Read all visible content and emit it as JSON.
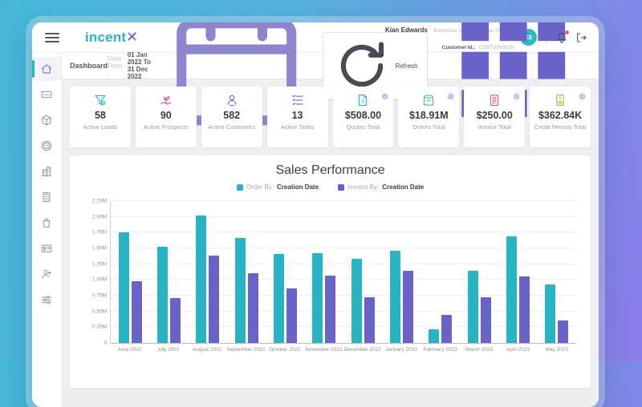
{
  "header": {
    "logo": {
      "brand_primary": "incent",
      "brand_x": "X"
    },
    "user": {
      "name": "Kian Edwards",
      "role": "Enterprise Sales Manager (Admin)",
      "customer_id_label": "Customer Id.:",
      "customer_id": "CUST1000019",
      "avatar_initials": "KE"
    }
  },
  "toolbar": {
    "page_title": "Dashboard",
    "date_label": "Data From :",
    "date_range": "01 Jan 2022 To 31 Dec 2022",
    "refresh_label": "Refresh"
  },
  "sidebar": {
    "items": [
      {
        "name": "home",
        "active": true
      },
      {
        "name": "crm",
        "icon_text": "CRM"
      },
      {
        "name": "package"
      },
      {
        "name": "payments",
        "icon_text": "$"
      },
      {
        "name": "company"
      },
      {
        "name": "billing"
      },
      {
        "name": "purchases"
      },
      {
        "name": "contracts"
      },
      {
        "name": "add-user"
      },
      {
        "name": "settings"
      }
    ]
  },
  "kpi_cards": [
    {
      "icon": "funnel-dollar",
      "icon_color": "#2bb5c4",
      "value": "58",
      "label": "Active Leads",
      "gear": false
    },
    {
      "icon": "hand-sprout",
      "icon_color": "#c0519f",
      "value": "90",
      "label": "Active Prospects",
      "gear": false
    },
    {
      "icon": "user",
      "icon_color": "#6b63c8",
      "value": "582",
      "label": "Active Customers",
      "gear": false
    },
    {
      "icon": "checklist",
      "icon_color": "#6b63c8",
      "value": "13",
      "label": "Active Tasks",
      "gear": false
    },
    {
      "icon": "doc-dollar",
      "icon_color": "#2bb5c4",
      "value": "$508.00",
      "label": "Quotes Total",
      "gear": true
    },
    {
      "icon": "order-box",
      "icon_color": "#45bfa0",
      "value": "$18.91M",
      "label": "Orders Total",
      "gear": true
    },
    {
      "icon": "invoice",
      "icon_color": "#d95f72",
      "value": "$250.00",
      "label": "Invoice Total",
      "gear": true
    },
    {
      "icon": "credit-memo",
      "icon_color": "#b0ab45",
      "value": "$362.84K",
      "label": "Credit Memos Total",
      "gear": true
    }
  ],
  "chart_data": {
    "type": "bar",
    "title": "Sales Performance",
    "categories": [
      "June 2022",
      "July 2022",
      "August 2022",
      "September 2022",
      "October 2022",
      "November 2022",
      "December 2022",
      "January 2023",
      "February 2023",
      "March 2023",
      "April 2023",
      "May 2023"
    ],
    "series": [
      {
        "name": "Order",
        "color": "#2ab4c3",
        "values": [
          1.75,
          1.53,
          2.02,
          1.66,
          1.41,
          1.43,
          1.33,
          1.46,
          0.21,
          1.15,
          1.69,
          0.93
        ]
      },
      {
        "name": "Invoice",
        "color": "#6a63c6",
        "values": [
          0.98,
          0.71,
          1.38,
          1.11,
          0.86,
          1.07,
          0.72,
          1.15,
          0.45,
          0.72,
          1.06,
          0.36
        ]
      }
    ],
    "legend": [
      {
        "prefix": "Order By:",
        "value": "Creation Date",
        "color": "#2ab4c3"
      },
      {
        "prefix": "Invoice By:",
        "value": "Creation Date",
        "color": "#6a63c6"
      }
    ],
    "ylabel": "",
    "xlabel": "",
    "ylim": [
      0,
      2.25
    ],
    "yticks": [
      "0",
      "0.25M",
      "0.50M",
      "0.75M",
      "1.00M",
      "1.25M",
      "1.50M",
      "1.75M",
      "2.00M",
      "2.25M"
    ],
    "grid": true,
    "legend_position": "top"
  },
  "colors": {
    "accent_teal": "#2bb5c4",
    "accent_purple": "#6b63c8",
    "notification_dot": "#e85a7a",
    "background_gradient": [
      "#45b8d8",
      "#8b7ce9"
    ]
  }
}
